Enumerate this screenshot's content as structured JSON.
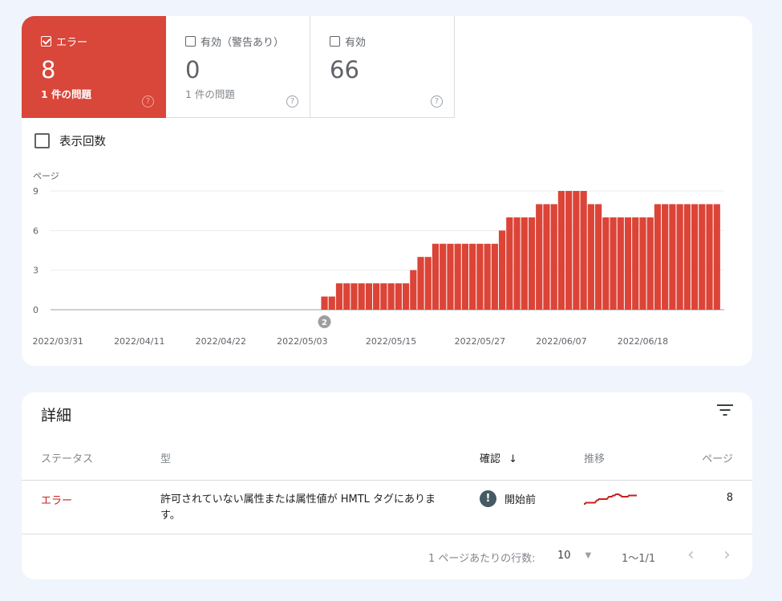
{
  "tiles": [
    {
      "label": "エラー",
      "value": "8",
      "sub": "1 件の問題",
      "checked": true,
      "color": "#d9463a"
    },
    {
      "label": "有効（警告あり）",
      "value": "0",
      "sub": "1 件の問題",
      "checked": false
    },
    {
      "label": "有効",
      "value": "66",
      "checked": false
    }
  ],
  "help_icon": "?",
  "impressions_label": "表示回数",
  "chart_data": {
    "type": "bar",
    "ylabel": "ページ",
    "ylim": [
      0,
      9
    ],
    "yticks": [
      "0",
      "3",
      "6",
      "9"
    ],
    "xlim": [
      "2022/03/30",
      "2022/06/29"
    ],
    "xticks": [
      "2022/03/31",
      "2022/04/11",
      "2022/04/22",
      "2022/05/03",
      "2022/05/15",
      "2022/05/27",
      "2022/06/07",
      "2022/06/18"
    ],
    "annotation": {
      "date": "2022/05/06",
      "label": "2"
    },
    "grid": true,
    "color": "#db4437",
    "x": [
      "2022/05/06",
      "2022/05/07",
      "2022/05/08",
      "2022/05/09",
      "2022/05/10",
      "2022/05/11",
      "2022/05/12",
      "2022/05/13",
      "2022/05/14",
      "2022/05/15",
      "2022/05/16",
      "2022/05/17",
      "2022/05/18",
      "2022/05/19",
      "2022/05/20",
      "2022/05/21",
      "2022/05/22",
      "2022/05/23",
      "2022/05/24",
      "2022/05/25",
      "2022/05/26",
      "2022/05/27",
      "2022/05/28",
      "2022/05/29",
      "2022/05/30",
      "2022/05/31",
      "2022/06/01",
      "2022/06/02",
      "2022/06/03",
      "2022/06/04",
      "2022/06/05",
      "2022/06/06",
      "2022/06/07",
      "2022/06/08",
      "2022/06/09",
      "2022/06/10",
      "2022/06/11",
      "2022/06/12",
      "2022/06/13",
      "2022/06/14",
      "2022/06/15",
      "2022/06/16",
      "2022/06/17",
      "2022/06/18",
      "2022/06/19",
      "2022/06/20",
      "2022/06/21",
      "2022/06/22",
      "2022/06/23",
      "2022/06/24",
      "2022/06/25",
      "2022/06/26",
      "2022/06/27",
      "2022/06/28"
    ],
    "values": [
      1,
      1,
      2,
      2,
      2,
      2,
      2,
      2,
      2,
      2,
      2,
      2,
      3,
      4,
      4,
      5,
      5,
      5,
      5,
      5,
      5,
      5,
      5,
      5,
      6,
      7,
      7,
      7,
      7,
      8,
      8,
      8,
      9,
      9,
      9,
      9,
      8,
      8,
      7,
      7,
      7,
      7,
      7,
      7,
      7,
      8,
      8,
      8,
      8,
      8,
      8,
      8,
      8,
      8
    ]
  },
  "details": {
    "title": "詳細",
    "filter_icon": "filter-icon",
    "columns": [
      "ステータス",
      "型",
      "確認",
      "推移",
      "ページ"
    ],
    "sort_icon": "↓",
    "rows": [
      {
        "status": "エラー",
        "type": "許可されていない属性または属性値が HMTL タグにあります。",
        "validation": "開始前",
        "validation_icon": "!",
        "pages": "8",
        "status_color": "#c5221f"
      }
    ],
    "rows_per_page_label": "1 ページあたりの行数:",
    "rows_per_page": "10",
    "range": "1〜1/1",
    "prev": "‹",
    "next": "›"
  }
}
